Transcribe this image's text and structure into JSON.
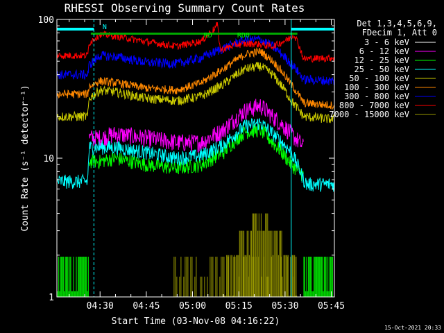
{
  "chart_data": {
    "type": "line",
    "title": "RHESSI Observing Summary Count Rates",
    "xlabel": "Start Time (03-Nov-08 04:16:22)",
    "ylabel": "Count Rate (s⁻¹ detector⁻¹)",
    "yscale": "log",
    "ylim": [
      1,
      100
    ],
    "xlim_minutes": [
      -14,
      76
    ],
    "y_ticks": [
      {
        "value": 1,
        "label": "1"
      },
      {
        "value": 10,
        "label": "10"
      },
      {
        "value": 100,
        "label": "100"
      }
    ],
    "x_ticks": [
      {
        "minute": 0,
        "label": "04:30"
      },
      {
        "minute": 15,
        "label": "04:45"
      },
      {
        "minute": 30,
        "label": "05:00"
      },
      {
        "minute": 45,
        "label": "05:15"
      },
      {
        "minute": 60,
        "label": "05:30"
      },
      {
        "minute": 75,
        "label": "05:45"
      }
    ],
    "legend_header": [
      "Det 1,3,4,5,6,9,",
      "FDecim 1, Att 0"
    ],
    "legend_placement": "right",
    "series": [
      {
        "name": "3 - 6 keV",
        "color": "#000000",
        "points": [
          [
            -3.5,
            11
          ],
          [
            0,
            11
          ],
          [
            5,
            11.5
          ],
          [
            15,
            10.5
          ],
          [
            25,
            10
          ],
          [
            33,
            10
          ],
          [
            40,
            12
          ],
          [
            47,
            17
          ],
          [
            52,
            18
          ],
          [
            56,
            15
          ],
          [
            62,
            10
          ],
          [
            66,
            8
          ]
        ]
      },
      {
        "name": "6 - 12 keV",
        "color": "#ff00ff",
        "points": [
          [
            -3.5,
            14
          ],
          [
            0,
            14
          ],
          [
            5,
            15
          ],
          [
            15,
            14
          ],
          [
            25,
            13
          ],
          [
            33,
            13
          ],
          [
            40,
            16
          ],
          [
            47,
            22
          ],
          [
            52,
            24
          ],
          [
            56,
            20
          ],
          [
            62,
            15
          ],
          [
            66,
            12
          ]
        ]
      },
      {
        "name": "12 - 25 keV",
        "color": "#00ff00",
        "points": [
          [
            -3.5,
            9.5
          ],
          [
            0,
            9.5
          ],
          [
            5,
            10
          ],
          [
            15,
            9
          ],
          [
            25,
            8.5
          ],
          [
            33,
            9
          ],
          [
            40,
            11
          ],
          [
            47,
            15.5
          ],
          [
            52,
            16
          ],
          [
            56,
            13
          ],
          [
            62,
            9
          ],
          [
            66,
            7.5
          ]
        ]
      },
      {
        "name": "25 - 50 keV",
        "color": "#00ffff",
        "points": [
          [
            -14,
            6.8
          ],
          [
            -4,
            6.8
          ],
          [
            -3.5,
            12
          ],
          [
            0,
            12
          ],
          [
            5,
            12
          ],
          [
            15,
            11
          ],
          [
            25,
            10
          ],
          [
            33,
            10.5
          ],
          [
            40,
            12.5
          ],
          [
            47,
            17
          ],
          [
            52,
            18
          ],
          [
            56,
            15
          ],
          [
            62,
            11
          ],
          [
            66,
            7
          ],
          [
            67,
            6.5
          ],
          [
            76,
            6.5
          ]
        ]
      },
      {
        "name": "50 - 100 keV",
        "color": "#cccc00",
        "points": [
          [
            -14,
            20
          ],
          [
            -4,
            20
          ],
          [
            -3.5,
            27
          ],
          [
            0,
            31
          ],
          [
            5,
            30
          ],
          [
            15,
            27
          ],
          [
            25,
            26
          ],
          [
            33,
            28
          ],
          [
            40,
            34
          ],
          [
            47,
            44
          ],
          [
            52,
            46
          ],
          [
            56,
            40
          ],
          [
            62,
            26
          ],
          [
            66,
            20
          ],
          [
            76,
            19
          ]
        ]
      },
      {
        "name": "100 - 300 keV",
        "color": "#ff8800",
        "points": [
          [
            -14,
            29
          ],
          [
            -4,
            29
          ],
          [
            -3.5,
            33
          ],
          [
            0,
            36
          ],
          [
            5,
            35
          ],
          [
            15,
            32
          ],
          [
            25,
            31
          ],
          [
            33,
            35
          ],
          [
            40,
            44
          ],
          [
            47,
            56
          ],
          [
            52,
            59
          ],
          [
            56,
            50
          ],
          [
            62,
            34
          ],
          [
            66,
            25
          ],
          [
            76,
            24
          ]
        ]
      },
      {
        "name": "300 - 800 keV",
        "color": "#0000ff",
        "points": [
          [
            -14,
            40
          ],
          [
            -4,
            40
          ],
          [
            -3.5,
            47
          ],
          [
            0,
            55
          ],
          [
            5,
            54
          ],
          [
            15,
            49
          ],
          [
            25,
            48
          ],
          [
            33,
            53
          ],
          [
            40,
            62
          ],
          [
            47,
            71
          ],
          [
            52,
            72
          ],
          [
            56,
            64
          ],
          [
            62,
            48
          ],
          [
            66,
            37
          ],
          [
            76,
            36
          ]
        ]
      },
      {
        "name": "800 - 7000 keV",
        "color": "#ff0000",
        "points": [
          [
            -14,
            55
          ],
          [
            -4,
            55
          ],
          [
            -3.5,
            68
          ],
          [
            0,
            78
          ],
          [
            5,
            76
          ],
          [
            15,
            69
          ],
          [
            25,
            64
          ],
          [
            33,
            70
          ],
          [
            37,
            85
          ],
          [
            38,
            92
          ],
          [
            39,
            60
          ],
          [
            44,
            66
          ],
          [
            50,
            67
          ],
          [
            56,
            64
          ],
          [
            61,
            72
          ],
          [
            63,
            78
          ],
          [
            66,
            52
          ],
          [
            76,
            53
          ]
        ]
      },
      {
        "name": "7000 - 15000 keV",
        "color": "#999900",
        "points": [
          [
            40,
            1.5
          ],
          [
            44,
            2.2
          ],
          [
            48,
            3.3
          ],
          [
            52,
            4
          ],
          [
            56,
            3.3
          ],
          [
            60,
            2.2
          ],
          [
            64,
            1.5
          ]
        ]
      }
    ],
    "annotations": [
      {
        "text": "N",
        "color": "#00ffff",
        "minute": 1.5
      },
      {
        "text": "RD0",
        "color": "#00ff00",
        "minute": 46.5
      },
      {
        "text": "RD",
        "color": "#00ff00",
        "minute": 35
      }
    ],
    "flag_bars": {
      "cyan_night": [
        [
          -14,
          -2
        ],
        [
          62,
          76
        ]
      ],
      "green_flag": [
        [
          -3,
          64
        ]
      ]
    },
    "vertical_markers": {
      "dashed_cyan": [
        -2,
        76
      ],
      "solid_cyan": [
        -14,
        62
      ]
    }
  },
  "footer": {
    "timestamp": "15-Oct-2021 20:33"
  }
}
